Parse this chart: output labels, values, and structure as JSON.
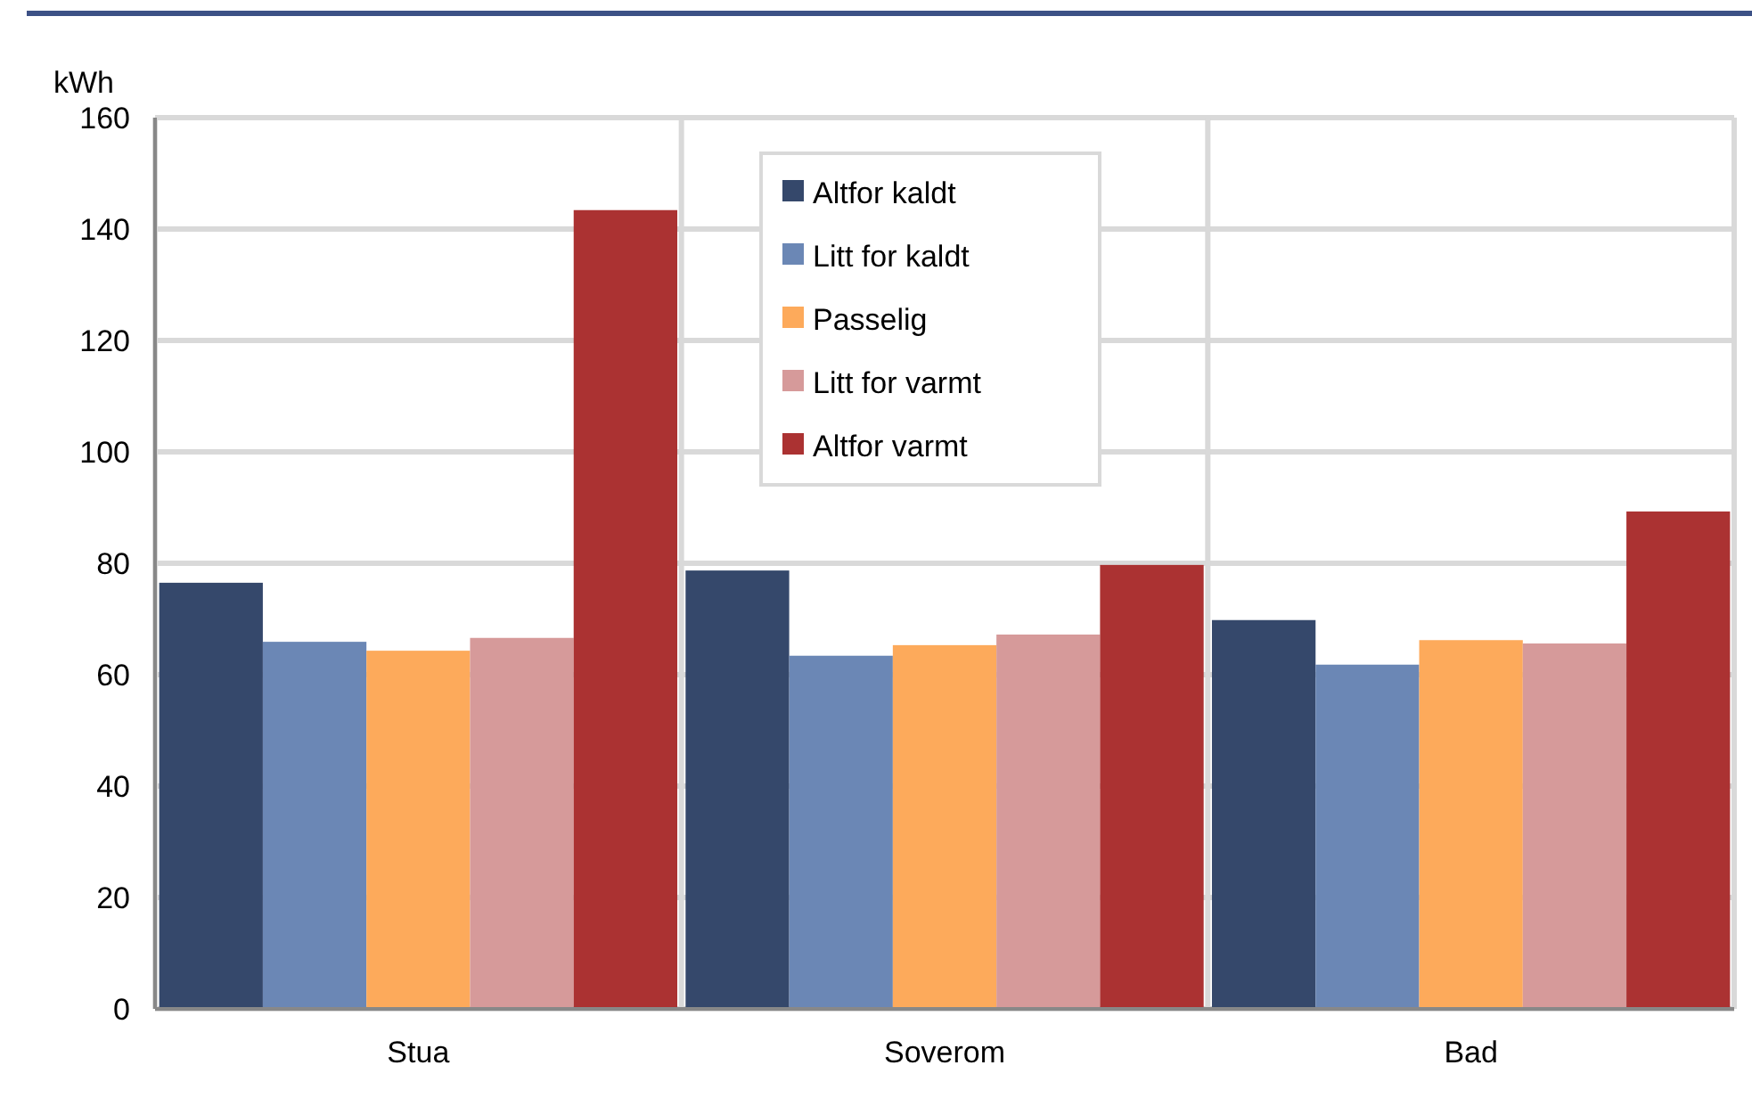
{
  "chart_data": {
    "type": "bar",
    "ylabel": "kWh",
    "categories": [
      "Stua",
      "Soverom",
      "Bad"
    ],
    "series": [
      {
        "name": "Altfor kaldt",
        "color": "#35486b",
        "values": [
          76.5,
          78.7,
          69.8
        ]
      },
      {
        "name": "Litt for kaldt",
        "color": "#6b87b5",
        "values": [
          65.9,
          63.4,
          61.8
        ]
      },
      {
        "name": "Passelig",
        "color": "#fdaa5b",
        "values": [
          64.3,
          65.3,
          66.2
        ]
      },
      {
        "name": "Litt for varmt",
        "color": "#d69a9a",
        "values": [
          66.6,
          67.2,
          65.6
        ]
      },
      {
        "name": "Altfor varmt",
        "color": "#ab3232",
        "values": [
          143.4,
          79.7,
          89.3
        ]
      }
    ],
    "ylim": [
      0,
      160
    ],
    "yticks": [
      0,
      20,
      40,
      60,
      80,
      100,
      120,
      140,
      160
    ],
    "grid": true,
    "legend": "top"
  }
}
